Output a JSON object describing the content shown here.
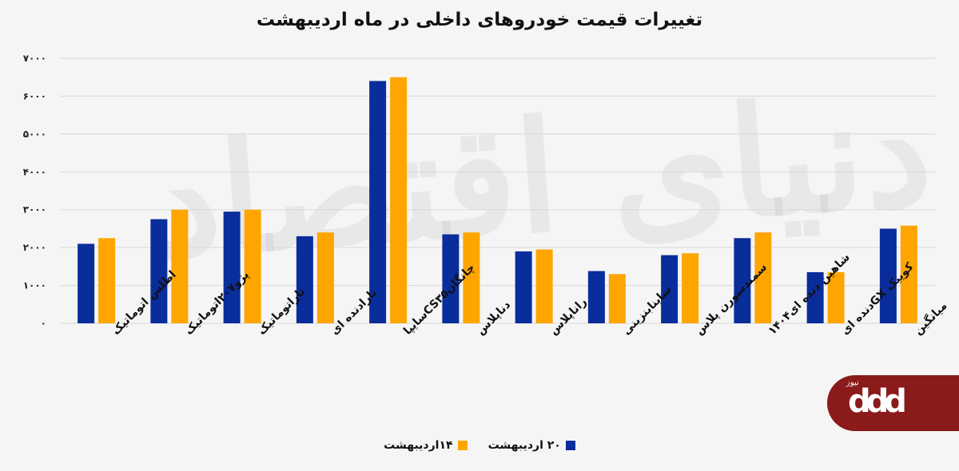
{
  "chart_data": {
    "type": "bar",
    "title": "تغییرات قیمت خودروهای داخلی در ماه اردیبهشت",
    "categories": [
      "اطلس اتوماتیک",
      "پژو۲۰۷اتوماتیک",
      "تاراتوماتیک",
      "تارادنده ای",
      "چانگانCS۳۵سایپا",
      "دناپلاس",
      "راناپلاس",
      "ساینابنزینی",
      "سمندسورن پلاس",
      "شاهین دنده ای۱۴۰۴",
      "کوییک GXدنده ای",
      "میانگین"
    ],
    "series": [
      {
        "name": "۲۰ اردیبهشت",
        "color": "#0a2d9c",
        "values": [
          2100,
          2750,
          2950,
          2300,
          6400,
          2350,
          1900,
          1380,
          1800,
          2250,
          1350,
          2500
        ]
      },
      {
        "name": "۱۴اردیبهشت",
        "color": "#ffa500",
        "values": [
          2250,
          3000,
          3000,
          2400,
          6500,
          2400,
          1950,
          1300,
          1850,
          2400,
          1350,
          2580
        ]
      }
    ],
    "yticks": [
      "۷۰۰۰",
      "۶۰۰۰",
      "۵۰۰۰",
      "۴۰۰۰",
      "۳۰۰۰",
      "۲۰۰۰",
      "۱۰۰۰",
      "۰"
    ],
    "ylim": [
      0,
      7000
    ],
    "grid": true,
    "legend_position": "bottom-center"
  },
  "watermark": "دنیای اقتصاد",
  "logo": {
    "mark": "ddd",
    "sub": "نیوز"
  }
}
